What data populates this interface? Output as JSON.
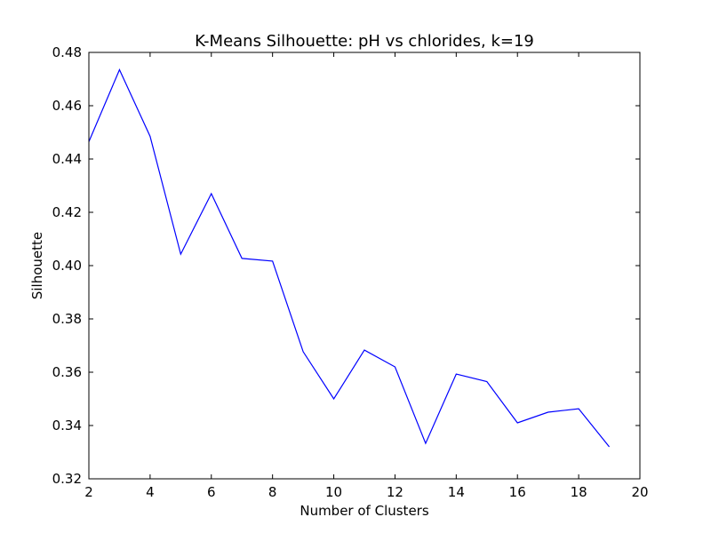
{
  "chart_data": {
    "type": "line",
    "title": "K-Means Silhouette: pH vs chlorides, k=19",
    "xlabel": "Number of Clusters",
    "ylabel": "Silhouette",
    "xlim": [
      2,
      20
    ],
    "ylim": [
      0.32,
      0.48
    ],
    "xticks": [
      2,
      4,
      6,
      8,
      10,
      12,
      14,
      16,
      18,
      20
    ],
    "yticks": [
      0.32,
      0.34,
      0.36,
      0.38,
      0.4,
      0.42,
      0.44,
      0.46,
      0.48
    ],
    "xtick_labels": [
      "2",
      "4",
      "6",
      "8",
      "10",
      "12",
      "14",
      "16",
      "18",
      "20"
    ],
    "ytick_labels": [
      "0.32",
      "0.34",
      "0.36",
      "0.38",
      "0.40",
      "0.42",
      "0.44",
      "0.46",
      "0.48"
    ],
    "grid": false,
    "series": [
      {
        "color": "#0000ff",
        "x": [
          2,
          3,
          4,
          5,
          6,
          7,
          8,
          9,
          10,
          11,
          12,
          13,
          14,
          15,
          16,
          17,
          18,
          19
        ],
        "y": [
          0.4465,
          0.4735,
          0.4485,
          0.4043,
          0.427,
          0.4027,
          0.4017,
          0.3677,
          0.35,
          0.3683,
          0.362,
          0.3333,
          0.3593,
          0.3565,
          0.341,
          0.345,
          0.3463,
          0.332
        ]
      }
    ]
  }
}
